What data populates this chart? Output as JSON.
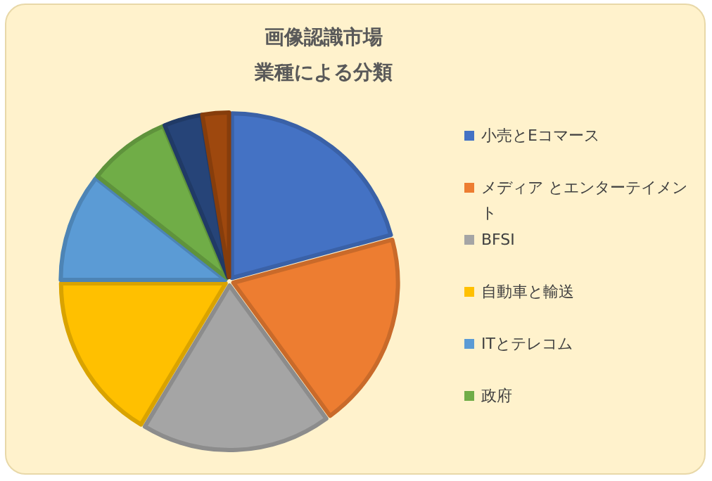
{
  "chart_data": {
    "type": "pie",
    "title": "画像認識市場",
    "subtitle": "業種による分類",
    "categories": [
      "小売とEコマース",
      "メディア とエンターテイメント",
      "BFSI",
      "自動車と輸送",
      "ITとテレコム",
      "政府",
      null,
      null
    ],
    "values": [
      20.8,
      19.2,
      18.6,
      16.4,
      10.6,
      8.1,
      3.7,
      2.6
    ],
    "colors": [
      "#4472c4",
      "#ed7d31",
      "#a5a5a5",
      "#ffc000",
      "#5b9bd5",
      "#70ad47",
      "#264478",
      "#9e480e"
    ],
    "legend": "right"
  }
}
